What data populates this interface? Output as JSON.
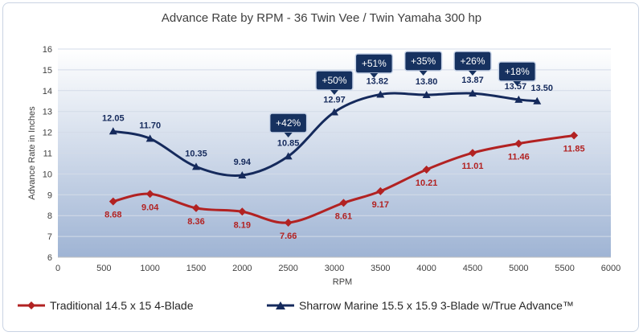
{
  "chart_data": {
    "type": "line",
    "title": "Advance Rate by RPM - 36 Twin Vee / Twin Yamaha 300 hp",
    "xlabel": "RPM",
    "ylabel": "Advance Rate in Inches",
    "xlim": [
      0,
      6000
    ],
    "ylim": [
      6,
      16
    ],
    "xticks": [
      0,
      500,
      1000,
      1500,
      2000,
      2500,
      3000,
      3500,
      4000,
      4500,
      5000,
      5500,
      6000
    ],
    "yticks": [
      6,
      7,
      8,
      9,
      10,
      11,
      12,
      13,
      14,
      15,
      16
    ],
    "legend_position": "bottom",
    "series": [
      {
        "name": "Traditional 14.5 x 15 4-Blade",
        "color": "#b22222",
        "marker": "diamond",
        "x": [
          600,
          1000,
          1500,
          2000,
          2500,
          3100,
          3500,
          4000,
          4500,
          5000,
          5600
        ],
        "y": [
          8.68,
          9.04,
          8.36,
          8.19,
          7.66,
          8.61,
          9.17,
          10.21,
          11.01,
          11.46,
          11.85
        ],
        "labels": [
          "8.68",
          "9.04",
          "8.36",
          "8.19",
          "7.66",
          "8.61",
          "9.17",
          "10.21",
          "11.01",
          "11.46",
          "11.85"
        ]
      },
      {
        "name": "Sharrow Marine 15.5 x 15.9 3-Blade w/True Advance™",
        "color": "#152a5c",
        "marker": "triangle",
        "x": [
          600,
          1000,
          1500,
          2000,
          2500,
          3000,
          3500,
          4000,
          4500,
          5000,
          5200
        ],
        "y": [
          12.05,
          11.7,
          10.35,
          9.94,
          10.85,
          12.97,
          13.82,
          13.8,
          13.87,
          13.57,
          13.5
        ],
        "labels": [
          "12.05",
          "11.70",
          "10.35",
          "9.94",
          "10.85",
          "12.97",
          "13.82",
          "13.80",
          "13.87",
          "13.57",
          "13.50"
        ]
      }
    ],
    "callouts": [
      {
        "text": "+42%",
        "x": 2500
      },
      {
        "text": "+50%",
        "x": 3000
      },
      {
        "text": "+51%",
        "x": 3500
      },
      {
        "text": "+35%",
        "x": 4000
      },
      {
        "text": "+26%",
        "x": 4500
      },
      {
        "text": "+18%",
        "x": 5000
      }
    ]
  },
  "colors": {
    "plot_bg_top": "#ffffff",
    "plot_bg_bottom": "#9fb4d4",
    "callout_bg": "#16315f",
    "callout_border": "#c8d4e8"
  }
}
